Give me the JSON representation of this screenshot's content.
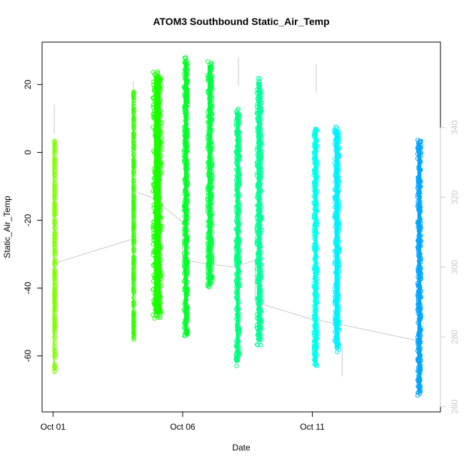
{
  "chart_data": {
    "type": "scatter",
    "title": "ATOM3 Southbound Static_Air_Temp",
    "xlabel": "Date",
    "ylabel": "Static_Air_Temp",
    "x_ticks": [
      {
        "label": "Oct 01",
        "day": 1
      },
      {
        "label": "Oct 06",
        "day": 6
      },
      {
        "label": "Oct 11",
        "day": 11
      }
    ],
    "x_range_days": [
      0.58,
      15.94
    ],
    "y_left": {
      "ticks": [
        -60,
        -40,
        -20,
        0,
        20
      ],
      "range": [
        -76.5,
        32.5
      ]
    },
    "y_right": {
      "ticks": [
        260,
        280,
        300,
        320,
        340
      ],
      "range": [
        258.5,
        364.5
      ],
      "color": "#c8c8c8",
      "note": "secondary axis drawn in light grey"
    },
    "marker": "open-circle",
    "series": [
      {
        "day": 1.0,
        "day_end": 1.05,
        "ymin": -65,
        "ymax": 4,
        "color": "#80ff00"
      },
      {
        "day": 4.05,
        "day_end": 4.1,
        "ymin": -56,
        "ymax": 18,
        "color": "#33ff00"
      },
      {
        "day": 4.8,
        "day_end": 5.25,
        "ymin": -49,
        "ymax": 24,
        "color": "#1aff00"
      },
      {
        "day": 6.0,
        "day_end": 6.25,
        "ymin": -55,
        "ymax": 28,
        "color": "#00ff26"
      },
      {
        "day": 6.9,
        "day_end": 7.2,
        "ymin": -40,
        "ymax": 27,
        "color": "#00ff40"
      },
      {
        "day": 8.0,
        "day_end": 8.25,
        "ymin": -63,
        "ymax": 13,
        "color": "#00ff80"
      },
      {
        "day": 8.8,
        "day_end": 9.1,
        "ymin": -57,
        "ymax": 22,
        "color": "#00ff99"
      },
      {
        "day": 11.0,
        "day_end": 11.25,
        "ymin": -63,
        "ymax": 7,
        "color": "#00ffee"
      },
      {
        "day": 11.8,
        "day_end": 12.1,
        "ymin": -59,
        "ymax": 8,
        "color": "#00f2ff"
      },
      {
        "day": 15.0,
        "day_end": 15.25,
        "ymin": -72,
        "ymax": 4,
        "color": "#00a6ff"
      }
    ],
    "right_axis_line": {
      "color": "#c8c8c8",
      "points": [
        [
          1.0,
          301
        ],
        [
          4.05,
          308
        ],
        [
          4.05,
          322
        ],
        [
          4.8,
          320
        ],
        [
          6.0,
          313
        ],
        [
          6.0,
          302
        ],
        [
          6.9,
          301
        ],
        [
          8.0,
          300
        ],
        [
          8.8,
          302
        ],
        [
          8.8,
          290
        ],
        [
          11.0,
          285
        ],
        [
          11.8,
          284
        ],
        [
          15.0,
          279
        ]
      ]
    },
    "grey_spikes": [
      {
        "day": 1.05,
        "temp_top": 14
      },
      {
        "day": 4.1,
        "temp_top": 21
      },
      {
        "day": 8.15,
        "temp_top": 28
      },
      {
        "day": 11.15,
        "temp_top": 26
      },
      {
        "day": 12.15,
        "temp_bottom": -66
      }
    ],
    "grid": false,
    "legend": "none"
  }
}
